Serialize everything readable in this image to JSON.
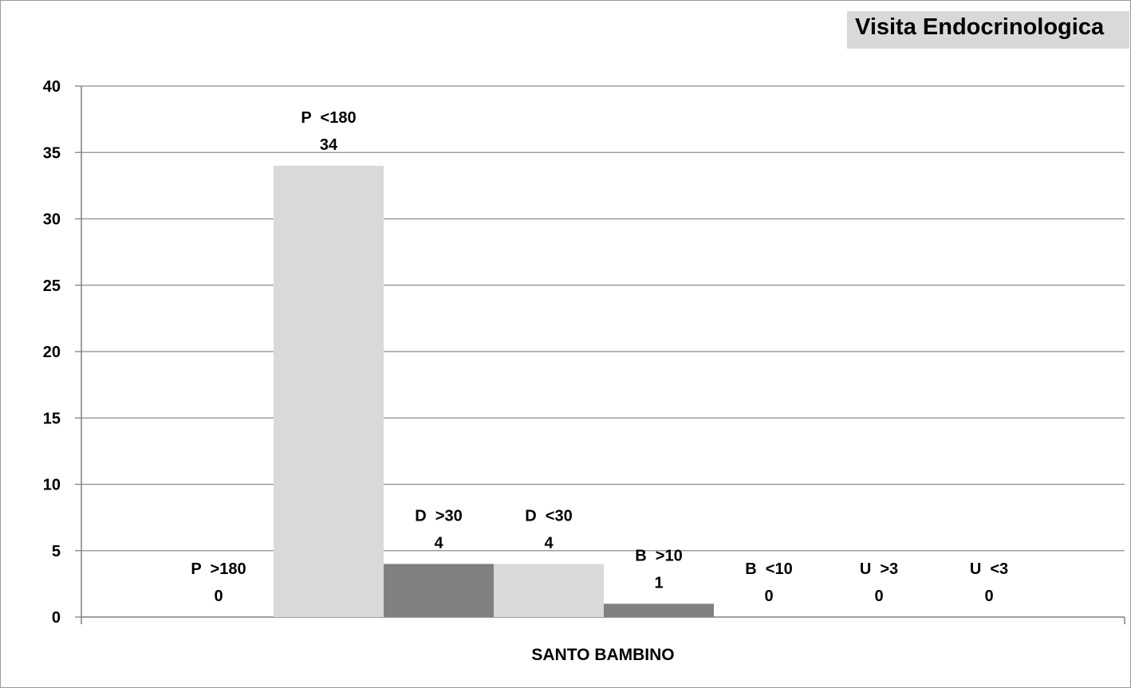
{
  "title": "Visita Endocrinologica",
  "chart_data": {
    "type": "bar",
    "categories": [
      "SANTO BAMBINO"
    ],
    "series": [
      {
        "name": "P >180",
        "label": "P  >180",
        "values": [
          0
        ],
        "color": "#d9d9d9"
      },
      {
        "name": "P <180",
        "label": "P  <180",
        "values": [
          34
        ],
        "color": "#d9d9d9"
      },
      {
        "name": "D >30",
        "label": "D  >30",
        "values": [
          4
        ],
        "color": "#808080"
      },
      {
        "name": "D <30",
        "label": "D  <30",
        "values": [
          4
        ],
        "color": "#d9d9d9"
      },
      {
        "name": "B >10",
        "label": "B  >10",
        "values": [
          1
        ],
        "color": "#808080"
      },
      {
        "name": "B <10",
        "label": "B  <10",
        "values": [
          0
        ],
        "color": "#808080"
      },
      {
        "name": "U >3",
        "label": "U  >3",
        "values": [
          0
        ],
        "color": "#808080"
      },
      {
        "name": "U <3",
        "label": "U  <3",
        "values": [
          0
        ],
        "color": "#808080"
      }
    ],
    "yticks": [
      "0",
      "5",
      "10",
      "15",
      "20",
      "25",
      "30",
      "35",
      "40"
    ],
    "ylim": [
      0,
      40
    ],
    "grid": true,
    "legend": "none"
  }
}
